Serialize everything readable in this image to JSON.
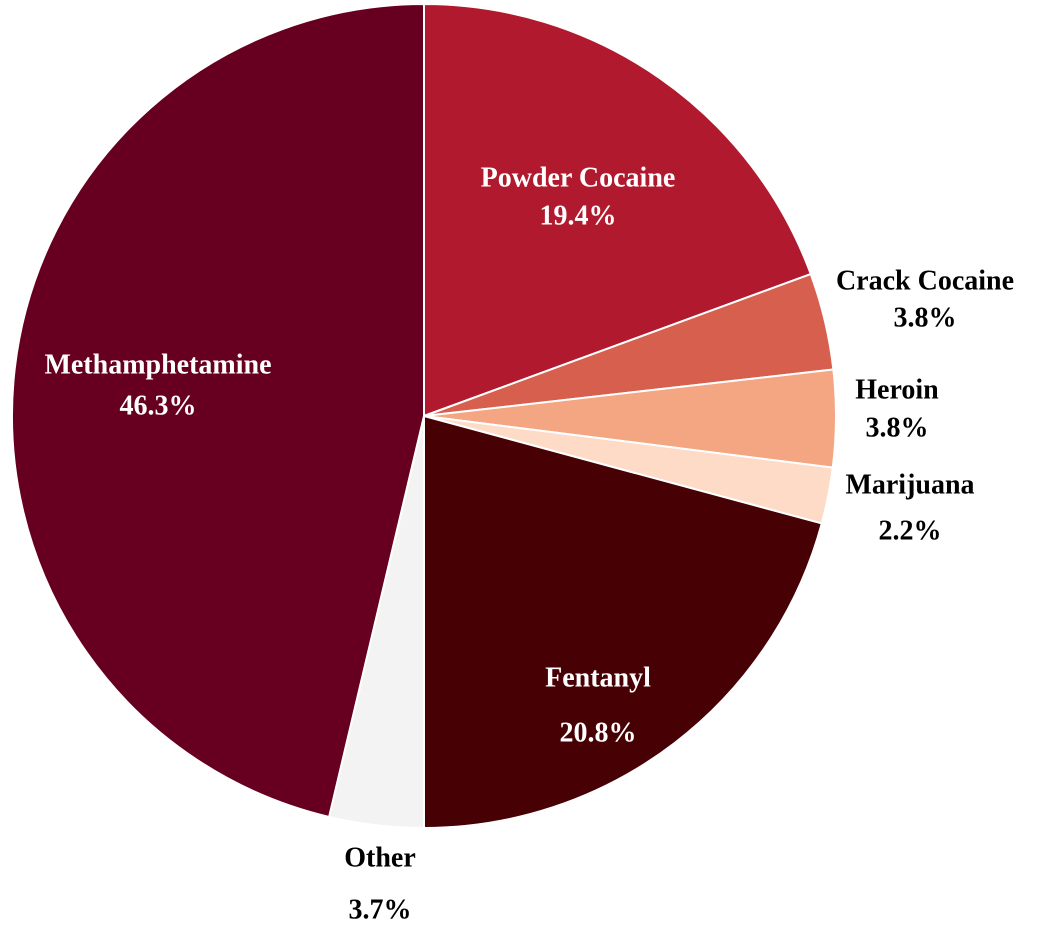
{
  "chart_data": {
    "type": "pie",
    "start_angle_deg": 0,
    "direction": "clockwise",
    "slices": [
      {
        "label": "Powder Cocaine",
        "value": 19.4,
        "value_label": "19.4%",
        "color": "#B0192E",
        "label_color": "#FFFFFF"
      },
      {
        "label": "Crack Cocaine",
        "value": 3.8,
        "value_label": "3.8%",
        "color": "#D6604D",
        "label_color": "#000000"
      },
      {
        "label": "Heroin",
        "value": 3.8,
        "value_label": "3.8%",
        "color": "#F4A582",
        "label_color": "#000000"
      },
      {
        "label": "Marijuana",
        "value": 2.2,
        "value_label": "2.2%",
        "color": "#FDDBC7",
        "label_color": "#000000"
      },
      {
        "label": "Fentanyl",
        "value": 20.8,
        "value_label": "20.8%",
        "color": "#470004",
        "label_color": "#FFFFFF"
      },
      {
        "label": "Other",
        "value": 3.7,
        "value_label": "3.7%",
        "color": "#F4F3F3",
        "label_color": "#000000"
      },
      {
        "label": "Methamphetamine",
        "value": 46.3,
        "value_label": "46.3%",
        "color": "#670020",
        "label_color": "#FFFFFF"
      }
    ]
  }
}
